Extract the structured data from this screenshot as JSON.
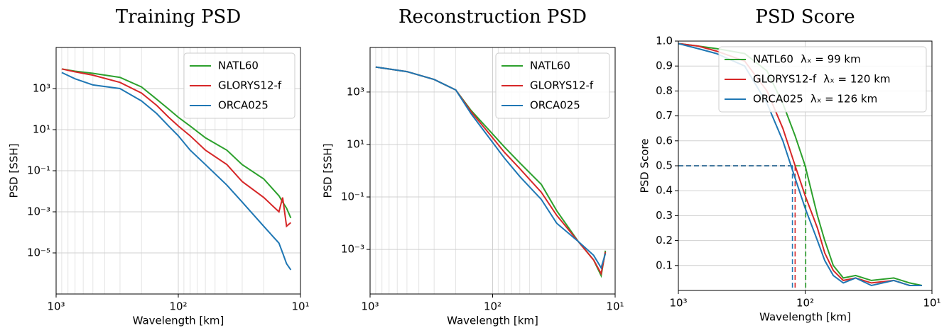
{
  "chart_data": [
    {
      "type": "line",
      "title": "Training PSD",
      "xlabel": "Wavelength [km]",
      "ylabel": "PSD [SSH]",
      "xlog": true,
      "ylog": true,
      "grid": true,
      "xminor": true,
      "legend": "upper right",
      "xlim": [
        1000,
        10
      ],
      "ylim": [
        1e-07,
        100000.0
      ],
      "xticks": [
        {
          "value": 1000,
          "label": "10³"
        },
        {
          "value": 100,
          "label": "10²"
        },
        {
          "value": 10,
          "label": "10¹"
        }
      ],
      "yticks": [
        {
          "value": 1000,
          "label": "10³"
        },
        {
          "value": 10,
          "label": "10¹"
        },
        {
          "value": 0.1,
          "label": "10⁻¹"
        },
        {
          "value": 0.001,
          "label": "10⁻³"
        },
        {
          "value": 1e-05,
          "label": "10⁻⁵"
        }
      ],
      "x": [
        900,
        700,
        500,
        300,
        200,
        150,
        120,
        100,
        80,
        60,
        40,
        30,
        20,
        15,
        14,
        13,
        12
      ],
      "series": [
        {
          "name": "NATL60",
          "color": "#2ca02c",
          "values": [
            9000,
            7000,
            5500,
            3500,
            1200,
            300,
            100,
            40,
            15,
            4,
            1,
            0.2,
            0.04,
            0.006,
            0.003,
            0.0015,
            0.0005
          ]
        },
        {
          "name": "GLORYS12-f",
          "color": "#d62728",
          "values": [
            9000,
            6500,
            4500,
            2000,
            600,
            150,
            40,
            15,
            5,
            1,
            0.2,
            0.03,
            0.005,
            0.001,
            0.005,
            0.0002,
            0.0003
          ]
        },
        {
          "name": "ORCA025",
          "color": "#1f77b4",
          "values": [
            6000,
            3000,
            1500,
            1000,
            250,
            60,
            15,
            5,
            1,
            0.2,
            0.02,
            0.003,
            0.0002,
            3e-05,
            1e-05,
            3e-06,
            1.5e-06
          ]
        }
      ]
    },
    {
      "type": "line",
      "title": "Reconstruction PSD",
      "xlabel": "Wavelength [km]",
      "ylabel": "PSD [SSH]",
      "xlog": true,
      "ylog": true,
      "grid": true,
      "xminor": true,
      "legend": "upper right",
      "xlim": [
        1000,
        10
      ],
      "ylim": [
        2e-05,
        50000
      ],
      "xticks": [
        {
          "value": 1000,
          "label": "10³"
        },
        {
          "value": 100,
          "label": "10²"
        },
        {
          "value": 10,
          "label": "10¹"
        }
      ],
      "yticks": [
        {
          "value": 1000,
          "label": "10³"
        },
        {
          "value": 10,
          "label": "10¹"
        },
        {
          "value": 0.1,
          "label": "10⁻¹"
        },
        {
          "value": 0.001,
          "label": "10⁻³"
        }
      ],
      "x": [
        900,
        500,
        300,
        200,
        150,
        100,
        80,
        60,
        40,
        30,
        20,
        15,
        13,
        12
      ],
      "series": [
        {
          "name": "NATL60",
          "color": "#2ca02c",
          "values": [
            9000,
            6000,
            3000,
            1200,
            200,
            25,
            8,
            2,
            0.3,
            0.03,
            0.002,
            0.0004,
            0.0001,
            0.0009
          ]
        },
        {
          "name": "GLORYS12-f",
          "color": "#d62728",
          "values": [
            9000,
            6000,
            3000,
            1200,
            180,
            18,
            5,
            1.2,
            0.15,
            0.02,
            0.002,
            0.0004,
            0.00012,
            0.0008
          ]
        },
        {
          "name": "ORCA025",
          "color": "#1f77b4",
          "values": [
            9000,
            6000,
            3000,
            1200,
            150,
            12,
            3,
            0.6,
            0.08,
            0.01,
            0.002,
            0.0006,
            0.0002,
            0.0007
          ]
        }
      ]
    },
    {
      "type": "line",
      "title": "PSD Score",
      "xlabel": "Wavelength [km]",
      "ylabel": "PSD Score",
      "xlog": true,
      "ylog": false,
      "grid": true,
      "xminor": false,
      "legend": "upper right",
      "threshold": 0.5,
      "xlim": [
        1000,
        10
      ],
      "ylim": [
        0,
        1
      ],
      "xticks": [
        {
          "value": 1000,
          "label": "10³"
        },
        {
          "value": 100,
          "label": "10²"
        },
        {
          "value": 10,
          "label": "10¹"
        }
      ],
      "yticks": [
        0.1,
        0.2,
        0.3,
        0.4,
        0.5,
        0.6,
        0.7,
        0.8,
        0.9,
        {
          "value": 1,
          "label": "1.0"
        }
      ],
      "x": [
        1000,
        700,
        500,
        300,
        200,
        150,
        120,
        100,
        80,
        70,
        60,
        50,
        40,
        30,
        20,
        15,
        12
      ],
      "series": [
        {
          "name": "NATL60",
          "resolution": 99,
          "resolution_label": "λₓ = 99 km",
          "color": "#2ca02c",
          "values": [
            0.99,
            0.98,
            0.97,
            0.95,
            0.88,
            0.75,
            0.62,
            0.5,
            0.3,
            0.2,
            0.1,
            0.05,
            0.06,
            0.04,
            0.05,
            0.03,
            0.02
          ]
        },
        {
          "name": "GLORYS12-f",
          "resolution": 120,
          "resolution_label": "λₓ = 120 km",
          "color": "#d62728",
          "values": [
            0.99,
            0.98,
            0.96,
            0.92,
            0.8,
            0.65,
            0.5,
            0.38,
            0.25,
            0.15,
            0.08,
            0.04,
            0.05,
            0.03,
            0.04,
            0.02,
            0.02
          ]
        },
        {
          "name": "ORCA025",
          "resolution": 126,
          "resolution_label": "λₓ = 126 km",
          "color": "#1f77b4",
          "values": [
            0.99,
            0.97,
            0.95,
            0.9,
            0.75,
            0.6,
            0.45,
            0.33,
            0.2,
            0.12,
            0.06,
            0.03,
            0.05,
            0.02,
            0.04,
            0.02,
            0.02
          ]
        }
      ]
    }
  ]
}
